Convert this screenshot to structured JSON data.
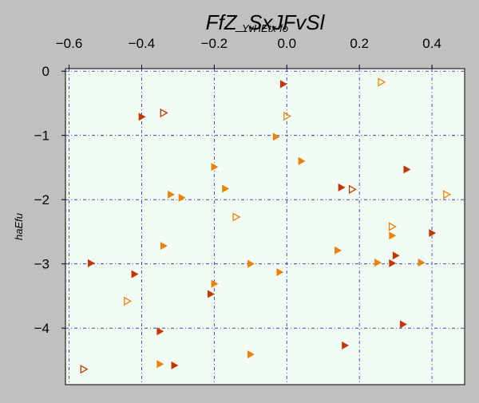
{
  "chart_data": {
    "type": "scatter",
    "title": "FfZ_SxJFvSl",
    "xlabel": "YvHEtx-fo",
    "ylabel": "haEfu",
    "xlim": [
      -0.61,
      0.49
    ],
    "ylim": [
      -4.88,
      0.04
    ],
    "x_axis_position": "top",
    "x_ticks": [
      -0.6,
      -0.4,
      -0.2,
      0.0,
      0.2,
      0.4
    ],
    "x_tick_labels": [
      "−0.6",
      "−0.4",
      "−0.2",
      "0.0",
      "0.2",
      "0.4"
    ],
    "y_ticks": [
      0,
      -1,
      -2,
      -3,
      -4
    ],
    "y_tick_labels": [
      "0",
      "−1",
      "−2",
      "−3",
      "−4"
    ],
    "grid": true,
    "colors": {
      "background": "#c0c0c0",
      "plot_background": "#f2fcf2",
      "grid": "#2222cc",
      "series_a": "#c0380a",
      "series_b": "#e8820e"
    },
    "series": [
      {
        "marker": "filled-triangle-right",
        "color": "#c0380a",
        "points": [
          [
            -0.4,
            -0.71
          ],
          [
            -0.01,
            -0.2
          ],
          [
            0.33,
            -1.53
          ],
          [
            0.15,
            -1.81
          ],
          [
            -0.54,
            -2.99
          ],
          [
            -0.42,
            -3.16
          ],
          [
            0.4,
            -2.52
          ],
          [
            0.3,
            -2.87
          ],
          [
            0.29,
            -2.99
          ],
          [
            -0.21,
            -3.47
          ],
          [
            -0.35,
            -4.05
          ],
          [
            0.32,
            -3.94
          ],
          [
            0.16,
            -4.27
          ],
          [
            -0.31,
            -4.58
          ]
        ]
      },
      {
        "marker": "filled-triangle-right",
        "color": "#e8820e",
        "points": [
          [
            -0.03,
            -1.02
          ],
          [
            0.04,
            -1.4
          ],
          [
            -0.2,
            -1.49
          ],
          [
            -0.17,
            -1.83
          ],
          [
            -0.32,
            -1.92
          ],
          [
            -0.29,
            -1.97
          ],
          [
            -0.34,
            -2.72
          ],
          [
            0.14,
            -2.79
          ],
          [
            0.29,
            -2.56
          ],
          [
            0.25,
            -2.98
          ],
          [
            0.37,
            -2.98
          ],
          [
            -0.1,
            -3.0
          ],
          [
            -0.02,
            -3.13
          ],
          [
            -0.2,
            -3.31
          ],
          [
            -0.1,
            -4.41
          ],
          [
            -0.35,
            -4.56
          ]
        ]
      },
      {
        "marker": "open-triangle-right",
        "color": "#c0380a",
        "points": [
          [
            -0.34,
            -0.65
          ],
          [
            0.18,
            -1.84
          ],
          [
            -0.56,
            -4.64
          ]
        ]
      },
      {
        "marker": "open-triangle-right",
        "color": "#e8820e",
        "points": [
          [
            0.26,
            -0.17
          ],
          [
            0.0,
            -0.7
          ],
          [
            0.44,
            -1.92
          ],
          [
            -0.14,
            -2.27
          ],
          [
            0.29,
            -2.42
          ],
          [
            -0.44,
            -3.58
          ]
        ]
      }
    ]
  }
}
